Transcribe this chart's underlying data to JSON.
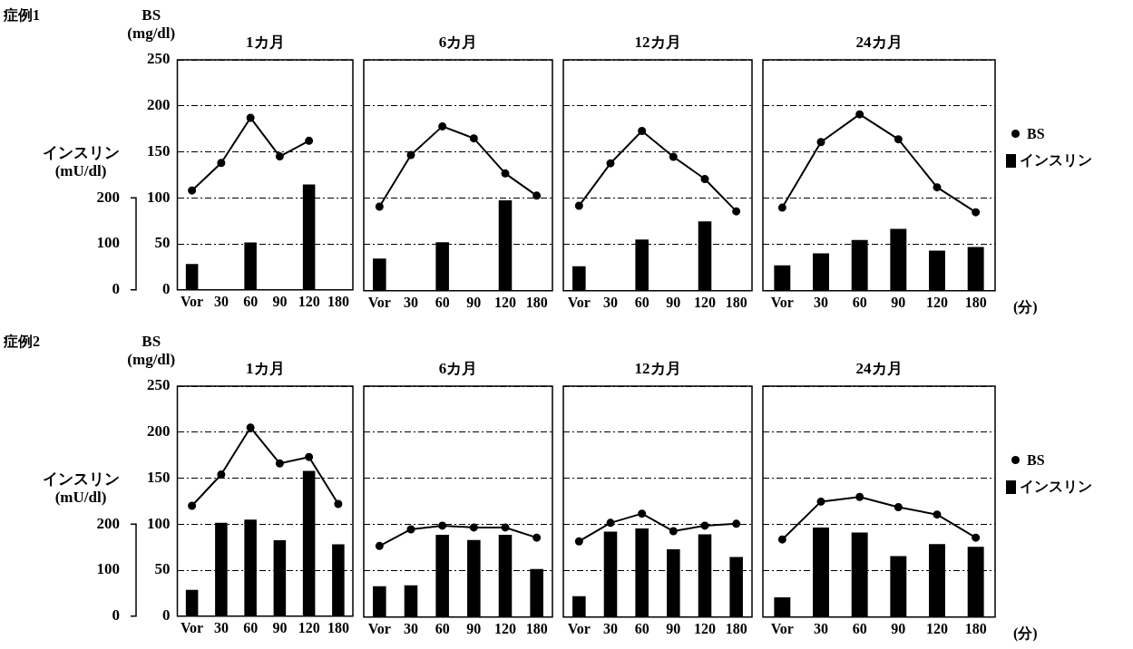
{
  "chart_data": [
    {
      "type": "bar",
      "title": "1カ月",
      "ylabel": "BS (mg/dl)",
      "y2label": "インスリン (mU/dl)",
      "annotations": [
        "症例1"
      ],
      "categories": [
        "Vor",
        "30",
        "60",
        "90",
        "120",
        "180"
      ],
      "ylim": [
        0,
        250
      ],
      "yticks": [
        0,
        50,
        100,
        150,
        200,
        250
      ],
      "y2lim": [
        0,
        500
      ],
      "y2ticks": [
        0,
        100,
        200
      ],
      "grid": "y",
      "legend": false,
      "marker": "circle",
      "line_style": "solid",
      "series": [
        {
          "type": "line",
          "color": "#000000",
          "values": [
            108,
            138,
            187,
            145,
            162,
            null
          ]
        },
        {
          "type": "bar",
          "axis": "y2",
          "color": "#000000",
          "values": [
            56,
            null,
            103,
            null,
            229,
            null
          ]
        }
      ]
    },
    {
      "type": "bar",
      "title": "6カ月",
      "categories": [
        "Vor",
        "30",
        "60",
        "90",
        "120",
        "180"
      ],
      "ylim": [
        0,
        250
      ],
      "yticks": [
        0,
        50,
        100,
        150,
        200,
        250
      ],
      "y2lim": [
        0,
        500
      ],
      "tick_labels": "x",
      "grid": "y",
      "legend": false,
      "marker": "circle",
      "line_style": "solid",
      "series": [
        {
          "type": "line",
          "color": "#000000",
          "values": [
            91,
            147,
            178,
            165,
            127,
            103
          ]
        },
        {
          "type": "bar",
          "axis": "y2",
          "color": "#000000",
          "values": [
            70,
            null,
            105,
            null,
            196,
            null
          ]
        }
      ]
    },
    {
      "type": "bar",
      "title": "12カ月",
      "categories": [
        "Vor",
        "30",
        "60",
        "90",
        "120",
        "180"
      ],
      "ylim": [
        0,
        250
      ],
      "yticks": [
        0,
        50,
        100,
        150,
        200,
        250
      ],
      "y2lim": [
        0,
        500
      ],
      "tick_labels": "x",
      "grid": "y",
      "legend": false,
      "marker": "circle",
      "line_style": "solid",
      "series": [
        {
          "type": "line",
          "color": "#000000",
          "values": [
            92,
            138,
            173,
            145,
            121,
            86
          ]
        },
        {
          "type": "bar",
          "axis": "y2",
          "color": "#000000",
          "values": [
            53,
            null,
            111,
            null,
            150,
            null
          ]
        }
      ]
    },
    {
      "type": "bar",
      "title": "24カ月",
      "annotations": [
        "(分)"
      ],
      "categories": [
        "Vor",
        "30",
        "60",
        "90",
        "120",
        "180"
      ],
      "ylim": [
        0,
        250
      ],
      "yticks": [
        0,
        50,
        100,
        150,
        200,
        250
      ],
      "y2lim": [
        0,
        500
      ],
      "tick_labels": "x",
      "grid": "y",
      "legend": "right",
      "marker": "circle",
      "line_style": "solid",
      "series": [
        {
          "type": "line",
          "name": "BS",
          "color": "#000000",
          "values": [
            90,
            161,
            191,
            164,
            112,
            85
          ]
        },
        {
          "type": "bar",
          "name": "インスリン",
          "axis": "y2",
          "color": "#000000",
          "values": [
            55,
            81,
            110,
            134,
            87,
            95
          ]
        }
      ]
    },
    {
      "type": "bar",
      "title": "1カ月",
      "ylabel": "BS (mg/dl)",
      "y2label": "インスリン (mU/dl)",
      "annotations": [
        "症例2"
      ],
      "categories": [
        "Vor",
        "30",
        "60",
        "90",
        "120",
        "180"
      ],
      "ylim": [
        0,
        250
      ],
      "yticks": [
        0,
        50,
        100,
        150,
        200,
        250
      ],
      "y2lim": [
        0,
        500
      ],
      "y2ticks": [
        0,
        100,
        200
      ],
      "grid": "y",
      "legend": false,
      "marker": "circle",
      "line_style": "solid",
      "series": [
        {
          "type": "line",
          "color": "#000000",
          "values": [
            120,
            154,
            205,
            166,
            173,
            122
          ]
        },
        {
          "type": "bar",
          "axis": "y2",
          "color": "#000000",
          "values": [
            57,
            203,
            210,
            165,
            316,
            156
          ]
        }
      ]
    },
    {
      "type": "bar",
      "title": "6カ月",
      "categories": [
        "Vor",
        "30",
        "60",
        "90",
        "120",
        "180"
      ],
      "ylim": [
        0,
        250
      ],
      "yticks": [
        0,
        50,
        100,
        150,
        200,
        250
      ],
      "y2lim": [
        0,
        500
      ],
      "tick_labels": "x",
      "grid": "y",
      "legend": false,
      "marker": "circle",
      "line_style": "solid",
      "series": [
        {
          "type": "line",
          "color": "#000000",
          "values": [
            77,
            95,
            99,
            97,
            97,
            86
          ]
        },
        {
          "type": "bar",
          "axis": "y2",
          "color": "#000000",
          "values": [
            67,
            69,
            178,
            167,
            178,
            104
          ]
        }
      ]
    },
    {
      "type": "bar",
      "title": "12カ月",
      "categories": [
        "Vor",
        "30",
        "60",
        "90",
        "120",
        "180"
      ],
      "ylim": [
        0,
        250
      ],
      "yticks": [
        0,
        50,
        100,
        150,
        200,
        250
      ],
      "y2lim": [
        0,
        500
      ],
      "tick_labels": "x",
      "grid": "y",
      "legend": false,
      "marker": "circle",
      "line_style": "solid",
      "series": [
        {
          "type": "line",
          "color": "#000000",
          "values": [
            82,
            102,
            112,
            93,
            99,
            101
          ]
        },
        {
          "type": "bar",
          "axis": "y2",
          "color": "#000000",
          "values": [
            45,
            185,
            192,
            147,
            179,
            130
          ]
        }
      ]
    },
    {
      "type": "bar",
      "title": "24カ月",
      "annotations": [
        "(分)"
      ],
      "categories": [
        "Vor",
        "30",
        "60",
        "90",
        "120",
        "180"
      ],
      "ylim": [
        0,
        250
      ],
      "yticks": [
        0,
        50,
        100,
        150,
        200,
        250
      ],
      "y2lim": [
        0,
        500
      ],
      "tick_labels": "x",
      "grid": "y",
      "legend": "right",
      "marker": "circle",
      "line_style": "solid",
      "series": [
        {
          "type": "line",
          "name": "BS",
          "color": "#000000",
          "values": [
            84,
            125,
            130,
            119,
            111,
            86
          ]
        },
        {
          "type": "bar",
          "name": "インスリン",
          "axis": "y2",
          "color": "#000000",
          "values": [
            43,
            194,
            183,
            132,
            158,
            152
          ]
        }
      ]
    }
  ]
}
